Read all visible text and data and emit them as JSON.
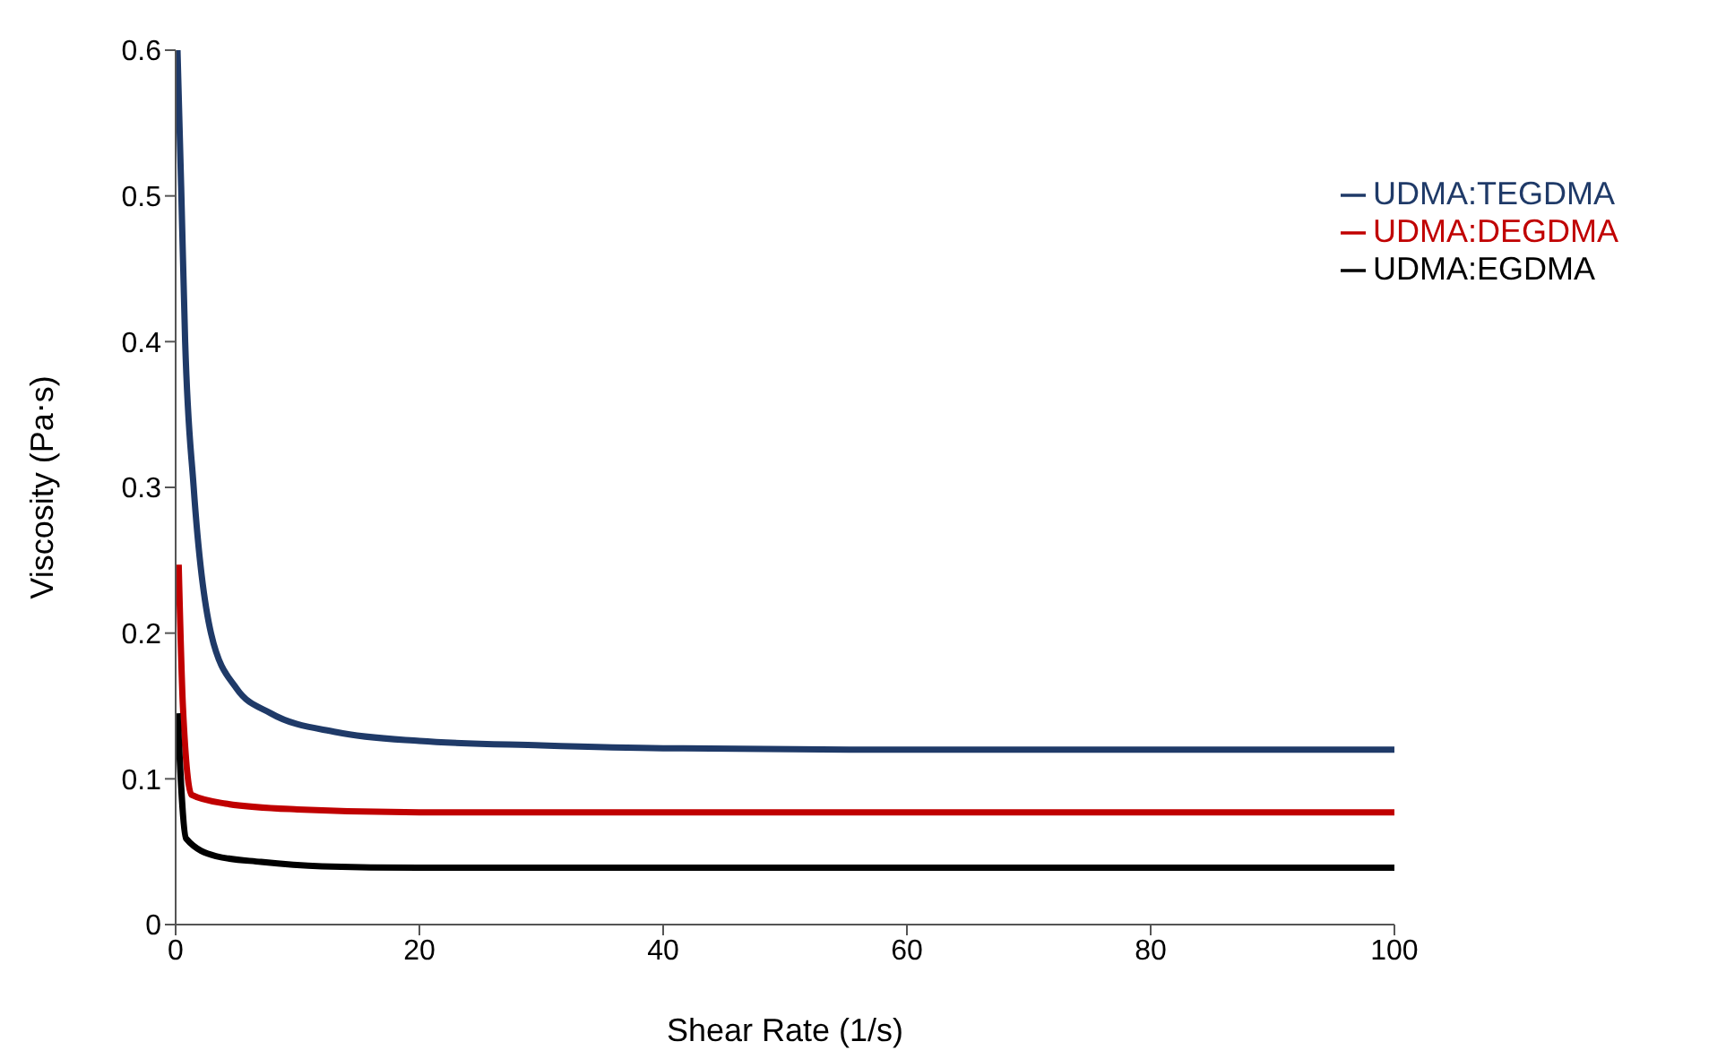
{
  "chart_data": {
    "type": "line",
    "xlabel": "Shear Rate (1/s)",
    "ylabel": "Viscosity (Pa⋅s)",
    "xlim": [
      0,
      100
    ],
    "xticks": [
      0,
      20,
      40,
      60,
      80,
      100
    ],
    "ylim": [
      0,
      0.6
    ],
    "yticks": [
      0,
      0.1,
      0.2,
      0.3,
      0.4,
      0.5,
      0.6
    ],
    "grid": false,
    "legend": "top right",
    "marker": "none",
    "line_style": "solid",
    "series": [
      {
        "name": "UDMA:TEGDMA",
        "color": "#1f3a68",
        "x": [
          0.15,
          0.45,
          0.78,
          1.48,
          2.9,
          5,
          7.8,
          13.2,
          20,
          30,
          40,
          60,
          80,
          100
        ],
        "values": [
          0.6,
          0.507,
          0.4,
          0.3,
          0.2,
          0.162,
          0.145,
          0.132,
          0.126,
          0.123,
          0.121,
          0.12,
          0.12,
          0.12
        ]
      },
      {
        "name": "UDMA:DEGDMA",
        "color": "#c00000",
        "x": [
          0.25,
          0.6,
          1.3,
          4.1,
          10,
          20,
          40,
          60,
          80,
          100
        ],
        "values": [
          0.247,
          0.149,
          0.089,
          0.083,
          0.079,
          0.077,
          0.077,
          0.077,
          0.077,
          0.077
        ]
      },
      {
        "name": "UDMA:EGDMA",
        "color": "#000000",
        "x": [
          0.15,
          0.86,
          3.3,
          7,
          12,
          20,
          40,
          60,
          80,
          100
        ],
        "values": [
          0.145,
          0.059,
          0.047,
          0.043,
          0.04,
          0.039,
          0.039,
          0.039,
          0.039,
          0.039
        ]
      }
    ]
  }
}
